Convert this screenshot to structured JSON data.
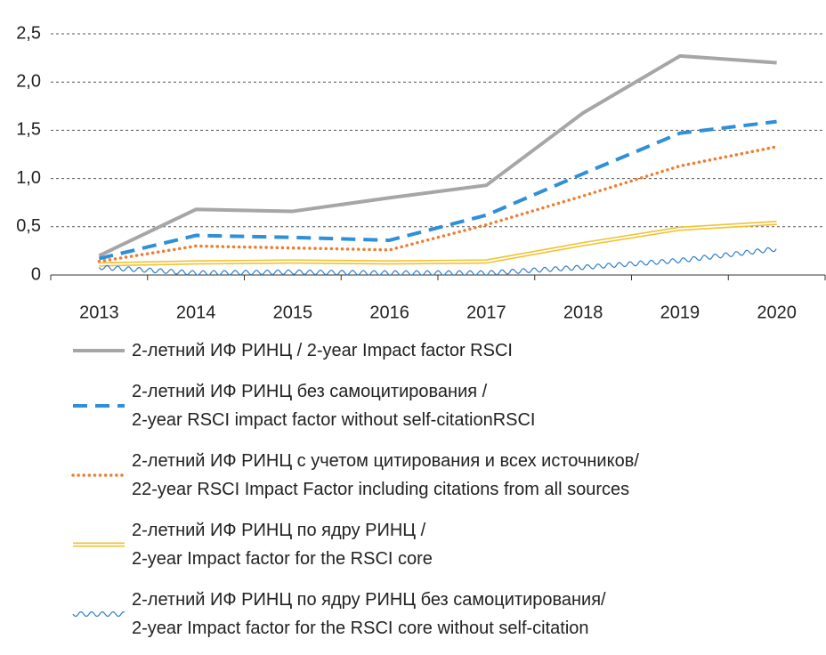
{
  "chart_data": {
    "type": "line",
    "categories": [
      "2013",
      "2014",
      "2015",
      "2016",
      "2017",
      "2018",
      "2019",
      "2020"
    ],
    "ylim": [
      0,
      2.5
    ],
    "yticks": [
      0,
      {
        "value": 0.5,
        "label": "0,5"
      },
      {
        "value": 1,
        "label": "1,0"
      },
      {
        "value": 1.5,
        "label": "1,5"
      },
      {
        "value": 2,
        "label": "2,0"
      },
      {
        "value": 2.5,
        "label": "2,5"
      }
    ],
    "grid": true,
    "series": [
      {
        "name": "2-летний ИФ РИНЦ / 2-year Impact factor RSCI",
        "color": "#a6a6a6",
        "style": "solid",
        "values": [
          0.2,
          0.68,
          0.66,
          0.8,
          0.93,
          1.68,
          2.27,
          2.2
        ]
      },
      {
        "name": "2-летний ИФ РИНЦ без самоцитирования /\n2-year RSCI impact factor without self-citationRSCI",
        "color": "#2f8fd8",
        "style": "dashed",
        "values": [
          0.17,
          0.41,
          0.39,
          0.36,
          0.62,
          1.05,
          1.47,
          1.59
        ]
      },
      {
        "name": "2-летний ИФ РИНЦ с учетом цитирования и всех источников/\n22-year RSCI Impact Factor including citations from all sources",
        "color": "#ed7d31",
        "style": "dotted",
        "values": [
          0.14,
          0.3,
          0.28,
          0.26,
          0.52,
          0.82,
          1.13,
          1.33
        ]
      },
      {
        "name": "2-летний ИФ РИНЦ по ядру РИНЦ /\n2-year Impact factor for the RSCI core",
        "color": "#f2c230",
        "style": "double",
        "values": [
          0.11,
          0.13,
          0.14,
          0.13,
          0.14,
          0.32,
          0.48,
          0.54
        ]
      },
      {
        "name": "2-летний ИФ РИНЦ по ядру РИНЦ без самоцитирования/\n2-year Impact factor for the RSCI core without self-citation",
        "color": "#2f7fc8",
        "style": "wavy",
        "values": [
          0.08,
          0.02,
          0.03,
          0.02,
          0.02,
          0.08,
          0.15,
          0.27
        ]
      }
    ]
  }
}
